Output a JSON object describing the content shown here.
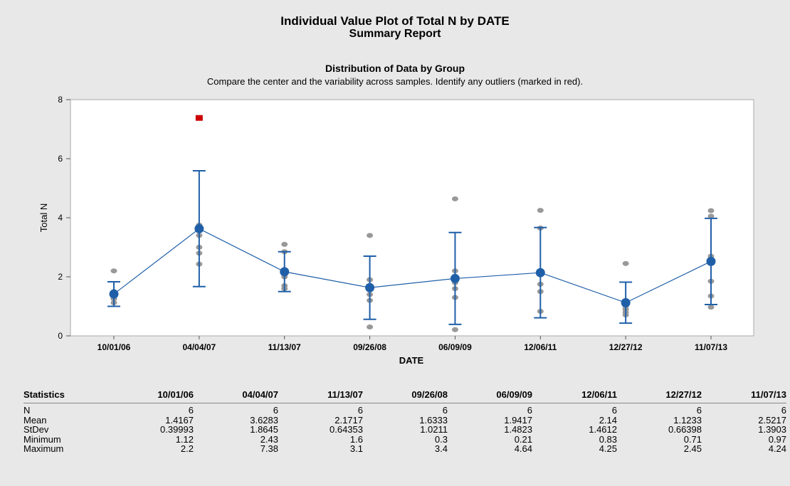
{
  "header": {
    "title": "Individual Value Plot of Total N by DATE",
    "report": "Summary Report",
    "section_title": "Distribution of Data by Group",
    "section_note": "Compare the center and the variability across samples. Identify any outliers (marked in red)."
  },
  "colors": {
    "mean_line": "#1f5fa8",
    "interval": "#1f5fa8",
    "points": "#999999",
    "outlier": "#cc0000",
    "plot_bg": "#ffffff",
    "page_bg": "#e8e8e8"
  },
  "chart_data": {
    "type": "scatter",
    "xlabel": "DATE",
    "ylabel": "Total N",
    "ylim": [
      0,
      8
    ],
    "yticks": [
      0,
      2,
      4,
      6,
      8
    ],
    "categories": [
      "10/01/06",
      "04/04/07",
      "11/13/07",
      "09/26/08",
      "06/09/09",
      "12/06/11",
      "12/27/12",
      "11/07/13"
    ],
    "means": [
      1.4167,
      3.6283,
      2.1717,
      1.6333,
      1.9417,
      2.14,
      1.1233,
      2.5217
    ],
    "intervals": [
      [
        1.0,
        1.83
      ],
      [
        1.67,
        5.59
      ],
      [
        1.5,
        2.85
      ],
      [
        0.56,
        2.7
      ],
      [
        0.39,
        3.5
      ],
      [
        0.61,
        3.67
      ],
      [
        0.43,
        1.82
      ],
      [
        1.06,
        3.98
      ]
    ],
    "points": [
      [
        1.12,
        1.25,
        1.3,
        1.4,
        1.5,
        2.2
      ],
      [
        2.43,
        2.8,
        3.0,
        3.4,
        3.75
      ],
      [
        1.6,
        1.7,
        2.0,
        2.2,
        2.85,
        3.1
      ],
      [
        0.3,
        1.2,
        1.4,
        1.7,
        1.9,
        3.4
      ],
      [
        0.21,
        1.3,
        1.6,
        1.8,
        2.2,
        4.64
      ],
      [
        0.83,
        1.5,
        1.75,
        2.1,
        3.65,
        4.25
      ],
      [
        0.71,
        0.8,
        0.9,
        1.0,
        1.15,
        2.45
      ],
      [
        0.97,
        1.35,
        1.85,
        2.7,
        4.05,
        4.24
      ]
    ],
    "outliers": [
      {
        "category": "04/04/07",
        "value": 7.38
      }
    ],
    "grid": false,
    "legend": "none"
  },
  "statistics": {
    "header": "Statistics",
    "columns": [
      "10/01/06",
      "04/04/07",
      "11/13/07",
      "09/26/08",
      "06/09/09",
      "12/06/11",
      "12/27/12",
      "11/07/13"
    ],
    "rows": [
      {
        "label": "N",
        "values": [
          "6",
          "6",
          "6",
          "6",
          "6",
          "6",
          "6",
          "6"
        ]
      },
      {
        "label": "Mean",
        "values": [
          "1.4167",
          "3.6283",
          "2.1717",
          "1.6333",
          "1.9417",
          "2.14",
          "1.1233",
          "2.5217"
        ]
      },
      {
        "label": "StDev",
        "values": [
          "0.39993",
          "1.8645",
          "0.64353",
          "1.0211",
          "1.4823",
          "1.4612",
          "0.66398",
          "1.3903"
        ]
      },
      {
        "label": "Minimum",
        "values": [
          "1.12",
          "2.43",
          "1.6",
          "0.3",
          "0.21",
          "0.83",
          "0.71",
          "0.97"
        ]
      },
      {
        "label": "Maximum",
        "values": [
          "2.2",
          "7.38",
          "3.1",
          "3.4",
          "4.64",
          "4.25",
          "2.45",
          "4.24"
        ]
      }
    ]
  }
}
